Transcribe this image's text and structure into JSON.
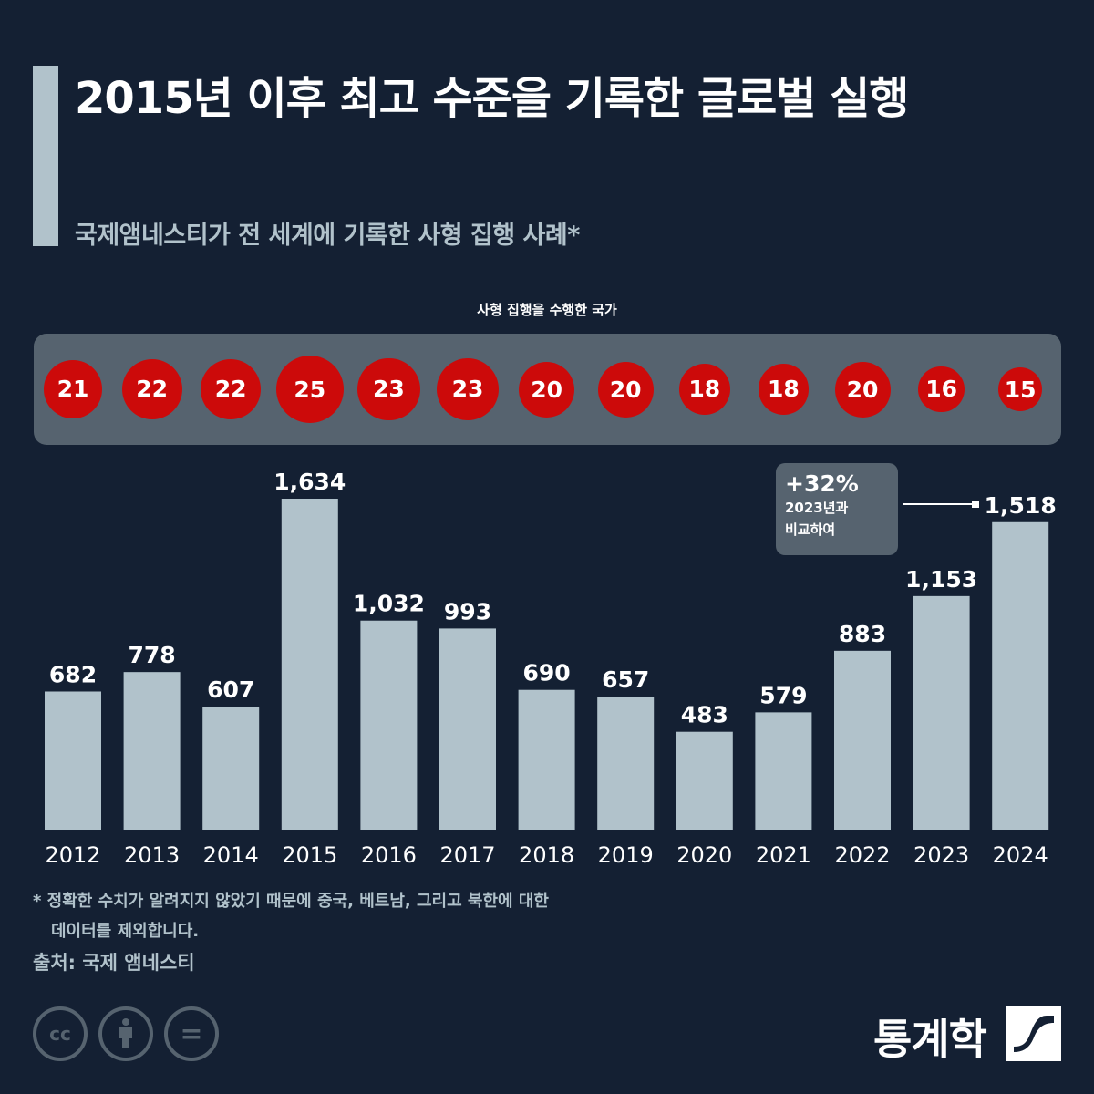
{
  "header": {
    "title": "2015년 이후 최고 수준을 기록한 글로벌 실행",
    "subtitle": "국제앰네스티가 전 세계에 기록한 사형 집행 사례*"
  },
  "countries": {
    "label": "사형 집행을 수행한 국가",
    "values": [
      21,
      22,
      22,
      25,
      23,
      23,
      20,
      20,
      18,
      18,
      20,
      16,
      15
    ],
    "circle_color": "#cc0a0a"
  },
  "chart_data": {
    "type": "bar",
    "categories": [
      "2012",
      "2013",
      "2014",
      "2015",
      "2016",
      "2017",
      "2018",
      "2019",
      "2020",
      "2021",
      "2022",
      "2023",
      "2024"
    ],
    "values": [
      682,
      778,
      607,
      1634,
      1032,
      993,
      690,
      657,
      483,
      579,
      883,
      1153,
      1518
    ],
    "value_labels": [
      "682",
      "778",
      "607",
      "1,634",
      "1,032",
      "993",
      "690",
      "657",
      "483",
      "579",
      "883",
      "1,153",
      "1,518"
    ],
    "bar_color": "#b1c2cb",
    "ylim": [
      0,
      1634
    ],
    "grid": false,
    "annotation": {
      "percent": "+32%",
      "line1": "2023년과",
      "line2": "비교하여"
    }
  },
  "footnote": {
    "line1": "* 정확한 수치가 알려지지 않았기 때문에 중국, 베트남, 그리고 북한에 대한",
    "line2": "데이터를 제외합니다."
  },
  "source": "출처: 국제 앰네스티",
  "license_icons": [
    {
      "icon": "creative-commons-icon",
      "glyph": "cc"
    },
    {
      "icon": "attribution-icon",
      "glyph": ""
    },
    {
      "icon": "no-derivatives-icon",
      "glyph": "="
    }
  ],
  "brand": {
    "name": "통계학"
  },
  "colors": {
    "background": "#142033",
    "panel": "#56636f",
    "accent": "#b1c2cb",
    "highlight": "#cc0a0a"
  }
}
